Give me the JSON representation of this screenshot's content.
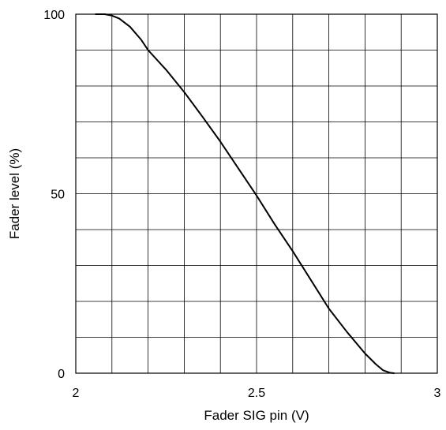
{
  "chart_data": {
    "type": "line",
    "title": "",
    "xlabel": "Fader SIG pin (V)",
    "ylabel": "Fader level (%)",
    "xlim": [
      2,
      3
    ],
    "ylim": [
      0,
      100
    ],
    "x_ticks": [
      2,
      2.5,
      3
    ],
    "x_tick_labels": [
      "2",
      "2.5",
      "3"
    ],
    "y_ticks": [
      0,
      50,
      100
    ],
    "y_tick_labels": [
      "0",
      "50",
      "100"
    ],
    "x_grid_step": 0.1,
    "y_grid_step": 10,
    "grid": true,
    "legend": "none",
    "line_color": "#000000",
    "series": [
      {
        "x": [
          2.055,
          2.08,
          2.1,
          2.12,
          2.15,
          2.18,
          2.2,
          2.25,
          2.3,
          2.35,
          2.4,
          2.45,
          2.5,
          2.55,
          2.6,
          2.65,
          2.7,
          2.75,
          2.8,
          2.83,
          2.85,
          2.87,
          2.88
        ],
        "y": [
          100,
          100,
          99.6,
          98.8,
          96.5,
          93,
          90,
          84.5,
          78.3,
          71.5,
          64.5,
          57,
          49.5,
          41.5,
          34,
          26,
          18,
          11.5,
          5.5,
          2.5,
          0.8,
          0.1,
          0
        ]
      }
    ]
  }
}
